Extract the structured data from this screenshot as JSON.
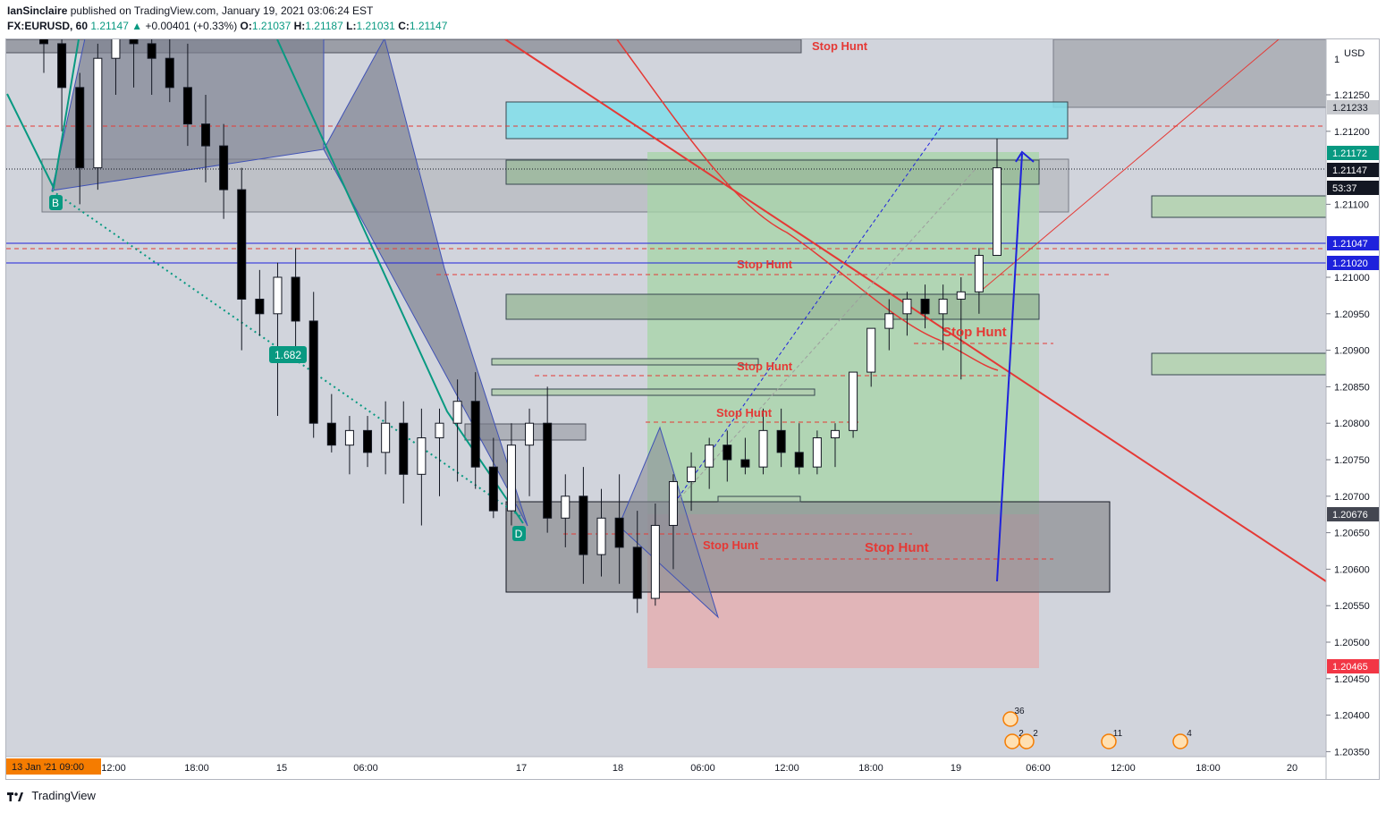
{
  "header": {
    "author": "IanSinclaire",
    "published_text": "published on TradingView.com, January 19, 2021 03:06:24 EST",
    "symbol": "FX:EURUSD, 60",
    "last": "1.21147",
    "change": "+0.00401 (+0.33%)",
    "o_label": "O:",
    "o": "1.21037",
    "h_label": "H:",
    "h": "1.21187",
    "l_label": "L:",
    "l": "1.21031",
    "c_label": "C:",
    "c": "1.21147"
  },
  "footer": {
    "brand": "TradingView"
  },
  "price_axis": {
    "currency": "USD",
    "top_label": "1",
    "ticks": [
      "1.21250",
      "1.21200",
      "1.21100",
      "1.21000",
      "1.20950",
      "1.20900",
      "1.20850",
      "1.20800",
      "1.20750",
      "1.20700",
      "1.20650",
      "1.20600",
      "1.20550",
      "1.20500",
      "1.20450",
      "1.20400",
      "1.20350"
    ],
    "markers": [
      {
        "text": "1.21233",
        "color": "#c8cacf",
        "textColor": "#131722"
      },
      {
        "text": "1.21172",
        "color": "#089981",
        "textColor": "#ffffff"
      },
      {
        "text": "1.21147",
        "color": "#131722",
        "textColor": "#ffffff"
      },
      {
        "text": "53:37",
        "color": "#131722",
        "textColor": "#ffffff"
      },
      {
        "text": "1.21047",
        "color": "#1e22dc",
        "textColor": "#ffffff"
      },
      {
        "text": "1.21020",
        "color": "#1e22dc",
        "textColor": "#ffffff"
      },
      {
        "text": "1.20676",
        "color": "#434651",
        "textColor": "#ffffff"
      },
      {
        "text": "1.20465",
        "color": "#f23645",
        "textColor": "#ffffff"
      }
    ]
  },
  "time_axis": {
    "current": "13 Jan '21   09:00",
    "ticks": [
      "12:00",
      "18:00",
      "15",
      "06:00",
      "17",
      "18",
      "06:00",
      "12:00",
      "18:00",
      "19",
      "06:00",
      "12:00",
      "18:00",
      "20"
    ]
  },
  "annotations": {
    "stop_hunt": "Stop Hunt",
    "fib": "1.682",
    "point_b": "B",
    "point_d": "D"
  },
  "events": [
    {
      "count": "36"
    },
    {
      "count": "2"
    },
    {
      "count": "2"
    },
    {
      "count": "11"
    },
    {
      "count": "4"
    }
  ],
  "colors": {
    "background": "#d1d4dc",
    "up": "#ffffff",
    "down": "#000000",
    "stop_hunt_text": "#e53935",
    "long_zone": "#a5d6a7",
    "short_zone": "#ef9a9a",
    "cyan_zone": "#80deea"
  },
  "chart_data": {
    "type": "candlestick",
    "symbol": "EURUSD",
    "interval": "60",
    "ylim": [
      1.2033,
      1.2138
    ],
    "candles": [
      [
        1.2137,
        1.2138,
        1.2128,
        1.2132
      ],
      [
        1.2132,
        1.2136,
        1.212,
        1.2126
      ],
      [
        1.2126,
        1.2128,
        1.211,
        1.2115
      ],
      [
        1.2115,
        1.2132,
        1.2112,
        1.213
      ],
      [
        1.213,
        1.2138,
        1.2125,
        1.2136
      ],
      [
        1.2136,
        1.2138,
        1.2126,
        1.2132
      ],
      [
        1.2132,
        1.2138,
        1.2125,
        1.213
      ],
      [
        1.213,
        1.2138,
        1.2124,
        1.2126
      ],
      [
        1.2126,
        1.2132,
        1.2118,
        1.2121
      ],
      [
        1.2121,
        1.2125,
        1.2113,
        1.2118
      ],
      [
        1.2118,
        1.2121,
        1.2108,
        1.2112
      ],
      [
        1.2112,
        1.2115,
        1.209,
        1.2097
      ],
      [
        1.2097,
        1.2101,
        1.2092,
        1.2095
      ],
      [
        1.2095,
        1.2102,
        1.2081,
        1.21
      ],
      [
        1.21,
        1.2104,
        1.209,
        1.2094
      ],
      [
        1.2094,
        1.2098,
        1.2078,
        1.208
      ],
      [
        1.208,
        1.2084,
        1.2076,
        1.2077
      ],
      [
        1.2077,
        1.2081,
        1.2073,
        1.2079
      ],
      [
        1.2079,
        1.2081,
        1.2074,
        1.2076
      ],
      [
        1.2076,
        1.2083,
        1.2073,
        1.208
      ],
      [
        1.208,
        1.2083,
        1.2069,
        1.2073
      ],
      [
        1.2073,
        1.2082,
        1.2066,
        1.2078
      ],
      [
        1.2078,
        1.2082,
        1.207,
        1.208
      ],
      [
        1.208,
        1.2086,
        1.2072,
        1.2083
      ],
      [
        1.2083,
        1.2087,
        1.2071,
        1.2074
      ],
      [
        1.2074,
        1.2078,
        1.2067,
        1.2068
      ],
      [
        1.2068,
        1.208,
        1.2066,
        1.2077
      ],
      [
        1.2077,
        1.2082,
        1.207,
        1.208
      ],
      [
        1.208,
        1.2085,
        1.2065,
        1.2067
      ],
      [
        1.2067,
        1.2073,
        1.2063,
        1.207
      ],
      [
        1.207,
        1.2074,
        1.2058,
        1.2062
      ],
      [
        1.2062,
        1.2071,
        1.2059,
        1.2067
      ],
      [
        1.2067,
        1.2073,
        1.2058,
        1.2063
      ],
      [
        1.2063,
        1.2068,
        1.2054,
        1.2056
      ],
      [
        1.2056,
        1.2069,
        1.2055,
        1.2066
      ],
      [
        1.2066,
        1.2073,
        1.206,
        1.2072
      ],
      [
        1.2072,
        1.2076,
        1.2068,
        1.2074
      ],
      [
        1.2074,
        1.2078,
        1.2071,
        1.2077
      ],
      [
        1.2077,
        1.2079,
        1.2072,
        1.2075
      ],
      [
        1.2075,
        1.2078,
        1.2073,
        1.2074
      ],
      [
        1.2074,
        1.2082,
        1.2073,
        1.2079
      ],
      [
        1.2079,
        1.2082,
        1.2074,
        1.2076
      ],
      [
        1.2076,
        1.208,
        1.2073,
        1.2074
      ],
      [
        1.2074,
        1.2079,
        1.2073,
        1.2078
      ],
      [
        1.2078,
        1.208,
        1.2074,
        1.2079
      ],
      [
        1.2079,
        1.2086,
        1.2078,
        1.2087
      ],
      [
        1.2087,
        1.2093,
        1.2085,
        1.2093
      ],
      [
        1.2093,
        1.2097,
        1.209,
        1.2095
      ],
      [
        1.2095,
        1.2098,
        1.2092,
        1.2097
      ],
      [
        1.2097,
        1.2099,
        1.2093,
        1.2095
      ],
      [
        1.2095,
        1.2099,
        1.209,
        1.2097
      ],
      [
        1.2097,
        1.21,
        1.2086,
        1.2098
      ],
      [
        1.2098,
        1.2104,
        1.2095,
        1.2103
      ],
      [
        1.2103,
        1.2119,
        1.2103,
        1.2115
      ]
    ]
  }
}
